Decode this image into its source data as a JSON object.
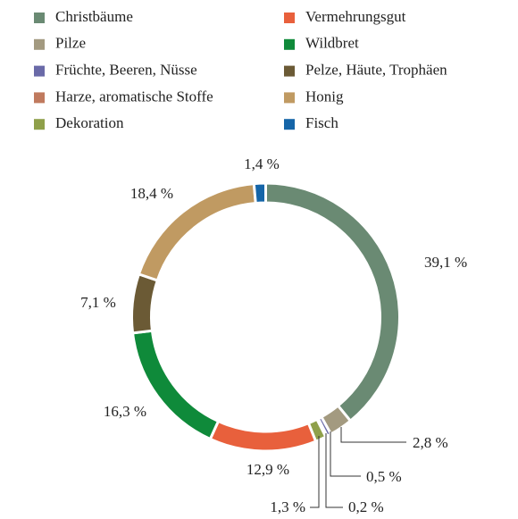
{
  "chart_data": {
    "type": "donut",
    "categories": [
      "Christbäume",
      "Pilze",
      "Früchte, Beeren, Nüsse",
      "Harze, aromatische Stoffe",
      "Dekoration",
      "Vermehrungsgut",
      "Wildbret",
      "Pelze, Häute, Trophäen",
      "Honig",
      "Fisch"
    ],
    "values": [
      39.1,
      2.8,
      0.5,
      0.2,
      1.3,
      12.9,
      16.3,
      7.1,
      18.4,
      1.4
    ],
    "value_labels": [
      "39,1 %",
      "2,8 %",
      "0,5 %",
      "0,2 %",
      "1,3 %",
      "12,9 %",
      "16,3 %",
      "7,1 %",
      "18,4 %",
      "1,4 %"
    ],
    "colors": [
      "#6a8a73",
      "#a39a80",
      "#6a6aa8",
      "#c07a5e",
      "#8fa04a",
      "#e8603c",
      "#0f8a3a",
      "#6b5a35",
      "#c09a62",
      "#1565a8"
    ]
  }
}
